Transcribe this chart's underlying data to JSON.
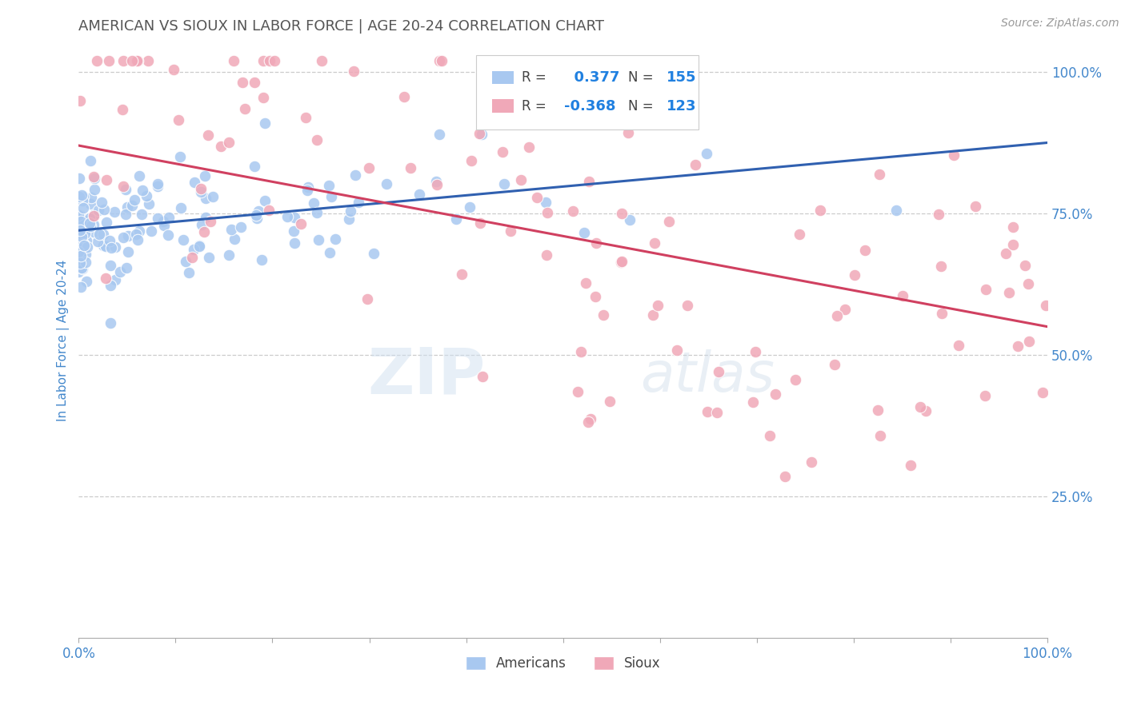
{
  "title": "AMERICAN VS SIOUX IN LABOR FORCE | AGE 20-24 CORRELATION CHART",
  "source_text": "Source: ZipAtlas.com",
  "ylabel": "In Labor Force | Age 20-24",
  "xlim": [
    0.0,
    1.0
  ],
  "ylim": [
    0.0,
    1.05
  ],
  "y_tick_labels": [
    "25.0%",
    "50.0%",
    "75.0%",
    "100.0%"
  ],
  "y_ticks": [
    0.25,
    0.5,
    0.75,
    1.0
  ],
  "american_R": 0.377,
  "american_N": 155,
  "sioux_R": -0.368,
  "sioux_N": 123,
  "american_color": "#a8c8f0",
  "sioux_color": "#f0a8b8",
  "american_line_color": "#3060b0",
  "sioux_line_color": "#d04060",
  "watermark_zip": "ZIP",
  "watermark_atlas": "atlas",
  "legend_R_color": "#2080E0",
  "legend_N_color": "#2080E0",
  "background_color": "#ffffff",
  "grid_color": "#cccccc",
  "title_color": "#555555",
  "tick_label_color": "#4488cc",
  "american_slope": 0.155,
  "american_intercept": 0.72,
  "sioux_slope": -0.32,
  "sioux_intercept": 0.87
}
